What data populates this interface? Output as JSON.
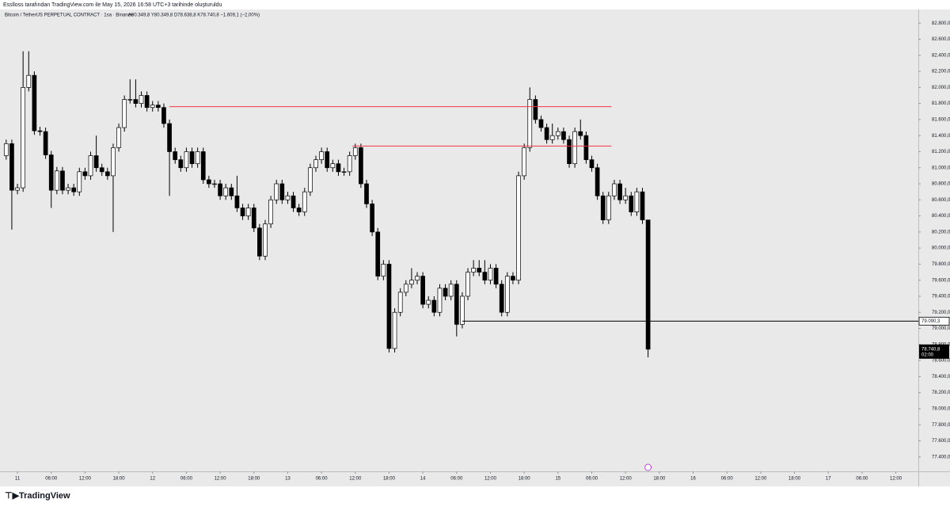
{
  "header": {
    "attribution": "Esslloss tarafından TradingView.com ile May 15, 2026 16:58 UTC+3 tarihinde oluşturuldu",
    "logo": "TradingView"
  },
  "chart_data": {
    "type": "candlestick",
    "title": "Bitcoin / TetherUS PERPETUAL CONTRACT · 1sa · Binance",
    "ohlc_text": "A80.349,8  Y80.349,8  D78.638,8  K78.740,8  −1.609,1 (−2,00%)",
    "up_color": "#ffffff",
    "down_color": "#000000",
    "border_color": "#000000",
    "x": [
      -2,
      -1,
      0,
      1,
      2,
      3,
      4,
      5,
      6,
      7,
      8,
      9,
      10,
      11,
      12,
      13,
      14,
      15,
      16,
      17,
      18,
      19,
      20,
      21,
      22,
      23,
      24,
      25,
      26,
      27,
      28,
      29,
      30,
      31,
      32,
      33,
      34,
      35,
      36,
      37,
      38,
      39,
      40,
      41,
      42,
      43,
      44,
      45,
      46,
      47,
      48,
      49,
      50,
      51,
      52,
      53,
      54,
      55,
      56,
      57,
      58,
      59,
      60,
      61,
      62,
      63,
      64,
      65,
      66,
      67,
      68,
      69,
      70,
      71,
      72,
      73,
      74,
      75,
      76,
      77,
      78,
      79,
      80,
      81,
      82,
      83,
      84,
      85,
      86,
      87,
      88,
      89,
      90,
      91,
      92,
      93,
      94,
      95,
      96,
      97,
      98,
      99,
      100,
      101,
      102,
      103,
      104,
      105,
      106,
      107,
      108,
      109,
      110,
      111,
      112
    ],
    "candles": [
      [
        81150,
        81350,
        81100,
        81300
      ],
      [
        81300,
        81350,
        80230,
        80720
      ],
      [
        80720,
        80800,
        80670,
        80750
      ],
      [
        80750,
        82450,
        80700,
        82000
      ],
      [
        82000,
        82450,
        81950,
        82150
      ],
      [
        82150,
        82200,
        81410,
        81460
      ],
      [
        81460,
        81510,
        81400,
        81450
      ],
      [
        81450,
        81500,
        81110,
        81160
      ],
      [
        81160,
        81210,
        80500,
        80720
      ],
      [
        80720,
        81010,
        80670,
        80960
      ],
      [
        80960,
        81010,
        80670,
        80720
      ],
      [
        80720,
        80800,
        80670,
        80750
      ],
      [
        80750,
        80800,
        80650,
        80700
      ],
      [
        80700,
        81000,
        80650,
        80950
      ],
      [
        80950,
        81000,
        80850,
        80900
      ],
      [
        80900,
        81200,
        80850,
        81150
      ],
      [
        81150,
        81400,
        80950,
        81000
      ],
      [
        81000,
        81050,
        80900,
        80950
      ],
      [
        80950,
        81000,
        80850,
        80900
      ],
      [
        80900,
        81300,
        80200,
        81250
      ],
      [
        81250,
        81550,
        81200,
        81500
      ],
      [
        81500,
        81900,
        81450,
        81850
      ],
      [
        81850,
        82100,
        81800,
        81850
      ],
      [
        81850,
        82100,
        81750,
        81800
      ],
      [
        81800,
        81950,
        81750,
        81900
      ],
      [
        81900,
        81950,
        81700,
        81750
      ],
      [
        81750,
        81830,
        81700,
        81780
      ],
      [
        81780,
        81830,
        81700,
        81750
      ],
      [
        81750,
        81800,
        81500,
        81550
      ],
      [
        81550,
        81600,
        80650,
        81200
      ],
      [
        81200,
        81250,
        81050,
        81100
      ],
      [
        81100,
        81150,
        80950,
        81000
      ],
      [
        81000,
        81250,
        80950,
        81200
      ],
      [
        81200,
        81250,
        81000,
        81050
      ],
      [
        81050,
        81250,
        81000,
        81200
      ],
      [
        81200,
        81250,
        80800,
        80850
      ],
      [
        80850,
        80900,
        80750,
        80800
      ],
      [
        80800,
        80850,
        80750,
        80800
      ],
      [
        80800,
        80850,
        80600,
        80650
      ],
      [
        80650,
        80800,
        80600,
        80750
      ],
      [
        80750,
        80800,
        80600,
        80650
      ],
      [
        80650,
        80900,
        80450,
        80500
      ],
      [
        80500,
        80550,
        80350,
        80400
      ],
      [
        80400,
        80550,
        80350,
        80500
      ],
      [
        80500,
        80550,
        80200,
        80250
      ],
      [
        80250,
        80300,
        79850,
        79900
      ],
      [
        79900,
        80350,
        79850,
        80300
      ],
      [
        80300,
        80650,
        80250,
        80600
      ],
      [
        80600,
        80850,
        80550,
        80800
      ],
      [
        80800,
        80850,
        80550,
        80600
      ],
      [
        80600,
        80700,
        80550,
        80650
      ],
      [
        80650,
        80700,
        80450,
        80500
      ],
      [
        80500,
        80550,
        80400,
        80450
      ],
      [
        80450,
        80750,
        80400,
        80700
      ],
      [
        80700,
        81050,
        80650,
        81000
      ],
      [
        81000,
        81150,
        80950,
        81100
      ],
      [
        81100,
        81250,
        81050,
        81200
      ],
      [
        81200,
        81250,
        80950,
        81000
      ],
      [
        81000,
        81100,
        80950,
        81050
      ],
      [
        81050,
        81100,
        80900,
        80950
      ],
      [
        80950,
        81000,
        80900,
        80950
      ],
      [
        80950,
        81200,
        80900,
        81150
      ],
      [
        81150,
        81300,
        81100,
        81250
      ],
      [
        81250,
        81300,
        80750,
        80800
      ],
      [
        80800,
        80850,
        80500,
        80550
      ],
      [
        80550,
        80600,
        80150,
        80200
      ],
      [
        80200,
        80250,
        79600,
        79650
      ],
      [
        79650,
        79850,
        79600,
        79800
      ],
      [
        79800,
        79850,
        78700,
        78750
      ],
      [
        78750,
        79250,
        78700,
        79200
      ],
      [
        79200,
        79500,
        79150,
        79450
      ],
      [
        79450,
        79600,
        79400,
        79550
      ],
      [
        79550,
        79750,
        79500,
        79600
      ],
      [
        79600,
        79700,
        79550,
        79650
      ],
      [
        79650,
        79700,
        79250,
        79300
      ],
      [
        79300,
        79400,
        79250,
        79350
      ],
      [
        79350,
        79400,
        79150,
        79200
      ],
      [
        79200,
        79550,
        79150,
        79500
      ],
      [
        79500,
        79550,
        79350,
        79400
      ],
      [
        79400,
        79600,
        79350,
        79550
      ],
      [
        79550,
        79600,
        78900,
        79050
      ],
      [
        79050,
        79450,
        79000,
        79400
      ],
      [
        79400,
        79750,
        79350,
        79700
      ],
      [
        79700,
        79850,
        79650,
        79750
      ],
      [
        79750,
        79850,
        79650,
        79700
      ],
      [
        79700,
        79850,
        79550,
        79600
      ],
      [
        79600,
        79800,
        79550,
        79750
      ],
      [
        79750,
        79800,
        79500,
        79550
      ],
      [
        79550,
        79600,
        79150,
        79200
      ],
      [
        79200,
        79700,
        79150,
        79650
      ],
      [
        79650,
        79700,
        79550,
        79600
      ],
      [
        79600,
        80950,
        79550,
        80900
      ],
      [
        80900,
        81300,
        80850,
        81250
      ],
      [
        81250,
        82000,
        81200,
        81850
      ],
      [
        81850,
        81900,
        81550,
        81600
      ],
      [
        81600,
        81650,
        81450,
        81500
      ],
      [
        81500,
        81550,
        81300,
        81350
      ],
      [
        81350,
        81550,
        81300,
        81400
      ],
      [
        81400,
        81500,
        81350,
        81450
      ],
      [
        81450,
        81500,
        81300,
        81350
      ],
      [
        81350,
        81400,
        81000,
        81050
      ],
      [
        81050,
        81500,
        81000,
        81450
      ],
      [
        81450,
        81600,
        81350,
        81400
      ],
      [
        81400,
        81450,
        81050,
        81100
      ],
      [
        81100,
        81150,
        80950,
        81000
      ],
      [
        81000,
        81050,
        80600,
        80650
      ],
      [
        80650,
        80700,
        80300,
        80350
      ],
      [
        80350,
        80700,
        80300,
        80650
      ],
      [
        80650,
        80850,
        80600,
        80800
      ],
      [
        80800,
        80850,
        80550,
        80600
      ],
      [
        80600,
        80750,
        80550,
        80650
      ],
      [
        80650,
        80700,
        80400,
        80450
      ],
      [
        80450,
        80750,
        80400,
        80700
      ],
      [
        80700,
        80750,
        80300,
        80350
      ],
      [
        80349.8,
        80349.8,
        78638.8,
        78740.8
      ]
    ],
    "last_price_label": "78.740,8",
    "countdown": "02:00",
    "lines": [
      {
        "value": 81760,
        "from": 27,
        "to": 105.5,
        "color": "#f23645"
      },
      {
        "value": 81270,
        "from": 59.5,
        "to": 105.5,
        "color": "#f23645"
      },
      {
        "value": 79090.3,
        "label": "79.090,3",
        "from": 79,
        "color": "#000000"
      }
    ],
    "xlim": [
      -3.1,
      160
    ],
    "ylim": [
      77220,
      82970
    ],
    "xticks": [
      {
        "value": 0,
        "label": "11"
      },
      {
        "value": 6,
        "label": "06:00"
      },
      {
        "value": 12,
        "label": "12:00"
      },
      {
        "value": 18,
        "label": "18:00"
      },
      {
        "value": 24,
        "label": "12"
      },
      {
        "value": 30,
        "label": "06:00"
      },
      {
        "value": 36,
        "label": "12:00"
      },
      {
        "value": 42,
        "label": "18:00"
      },
      {
        "value": 48,
        "label": "13"
      },
      {
        "value": 54,
        "label": "06:00"
      },
      {
        "value": 60,
        "label": "12:00"
      },
      {
        "value": 66,
        "label": "18:00"
      },
      {
        "value": 72,
        "label": "14"
      },
      {
        "value": 78,
        "label": "06:00"
      },
      {
        "value": 84,
        "label": "12:00"
      },
      {
        "value": 90,
        "label": "18:00"
      },
      {
        "value": 96,
        "label": "15"
      },
      {
        "value": 102,
        "label": "06:00"
      },
      {
        "value": 108,
        "label": "12:00"
      },
      {
        "value": 114,
        "label": "18:00"
      },
      {
        "value": 120,
        "label": "16"
      },
      {
        "value": 126,
        "label": "06:00"
      },
      {
        "value": 132,
        "label": "12:00"
      },
      {
        "value": 138,
        "label": "18:00"
      },
      {
        "value": 144,
        "label": "17"
      },
      {
        "value": 150,
        "label": "06:00"
      },
      {
        "value": 156,
        "label": "12:00"
      }
    ],
    "yticks": [
      {
        "value": 82800,
        "label": "82.800,0"
      },
      {
        "value": 82600,
        "label": "82.600,0"
      },
      {
        "value": 82400,
        "label": "82.400,0"
      },
      {
        "value": 82200,
        "label": "82.200,0"
      },
      {
        "value": 82000,
        "label": "82.000,0"
      },
      {
        "value": 81800,
        "label": "81.800,0"
      },
      {
        "value": 81600,
        "label": "81.600,0"
      },
      {
        "value": 81400,
        "label": "81.400,0"
      },
      {
        "value": 81200,
        "label": "81.200,0"
      },
      {
        "value": 81000,
        "label": "81.000,0"
      },
      {
        "value": 80800,
        "label": "80.800,0"
      },
      {
        "value": 80600,
        "label": "80.600,0"
      },
      {
        "value": 80400,
        "label": "80.400,0"
      },
      {
        "value": 80200,
        "label": "80.200,0"
      },
      {
        "value": 80000,
        "label": "80.000,0"
      },
      {
        "value": 79800,
        "label": "79.800,0"
      },
      {
        "value": 79600,
        "label": "79.600,0"
      },
      {
        "value": 79400,
        "label": "79.400,0"
      },
      {
        "value": 79200,
        "label": "79.200,0"
      },
      {
        "value": 79000,
        "label": "79.000,0"
      },
      {
        "value": 78800,
        "label": "78.800,0"
      },
      {
        "value": 78600,
        "label": "78.600,0"
      },
      {
        "value": 78400,
        "label": "78.400,0"
      },
      {
        "value": 78200,
        "label": "78.200,0"
      },
      {
        "value": 78000,
        "label": "78.000,0"
      },
      {
        "value": 77800,
        "label": "77.800,0"
      },
      {
        "value": 77600,
        "label": "77.600,0"
      },
      {
        "value": 77400,
        "label": "77.400,0"
      }
    ]
  }
}
